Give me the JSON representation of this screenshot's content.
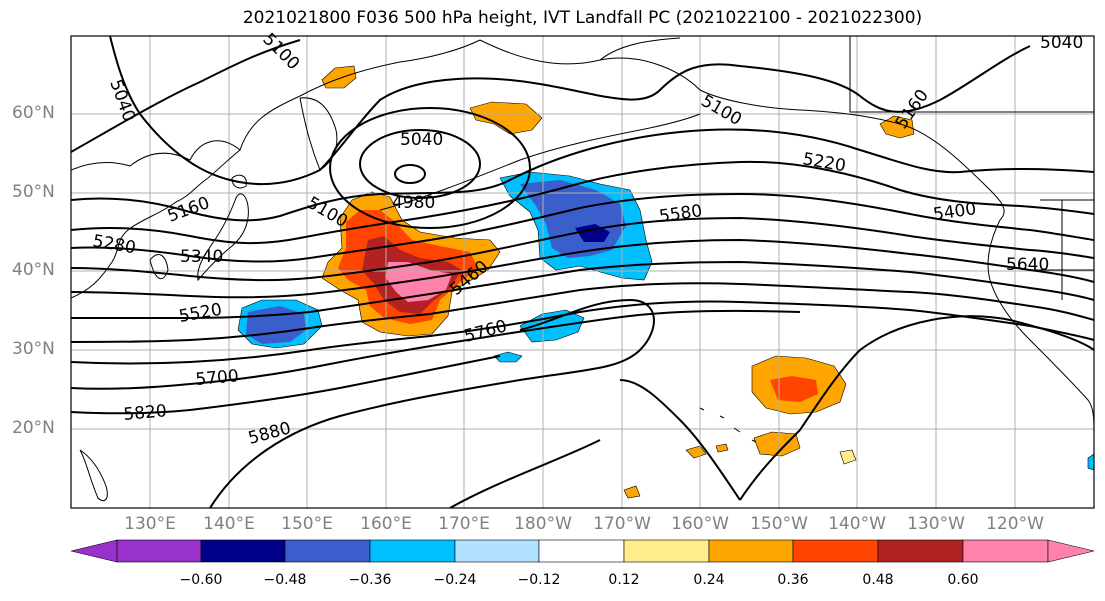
{
  "title": "2021021800 F036 500 hPa height, IVT Landfall PC (2021022100 - 2021022300)",
  "lat_labels": [
    "60°N",
    "50°N",
    "40°N",
    "30°N",
    "20°N"
  ],
  "lon_labels": [
    "130°E",
    "140°E",
    "150°E",
    "160°E",
    "170°E",
    "180°W",
    "170°W",
    "160°W",
    "150°W",
    "140°W",
    "130°W",
    "120°W"
  ],
  "contour_labels": [
    "5040",
    "5100",
    "5040",
    "4980",
    "5100",
    "5160",
    "5280",
    "5340",
    "5520",
    "5460",
    "5760",
    "5700",
    "5820",
    "5880",
    "5580",
    "5100",
    "5220",
    "5400",
    "5640",
    "5160",
    "5040"
  ],
  "colorbar": {
    "ticks": [
      "−0.60",
      "−0.48",
      "−0.36",
      "−0.24",
      "−0.12",
      "0.12",
      "0.24",
      "0.36",
      "0.48",
      "0.60"
    ],
    "colors": [
      "#9932cc",
      "#00008b",
      "#3a5fcd",
      "#00bfff",
      "#b0e2ff",
      "#ffffff",
      "#ffec8b",
      "#ffa500",
      "#ff4500",
      "#b22222",
      "#ff82ab"
    ]
  },
  "shading_colors": {
    "orange": "#ffa500",
    "orange_red": "#ff4500",
    "dark_red": "#b22222",
    "pink": "#ff82ab",
    "light_yellow": "#ffec8b",
    "deep_sky": "#00bfff",
    "royal_blue": "#3a5fcd",
    "navy": "#00008b"
  }
}
